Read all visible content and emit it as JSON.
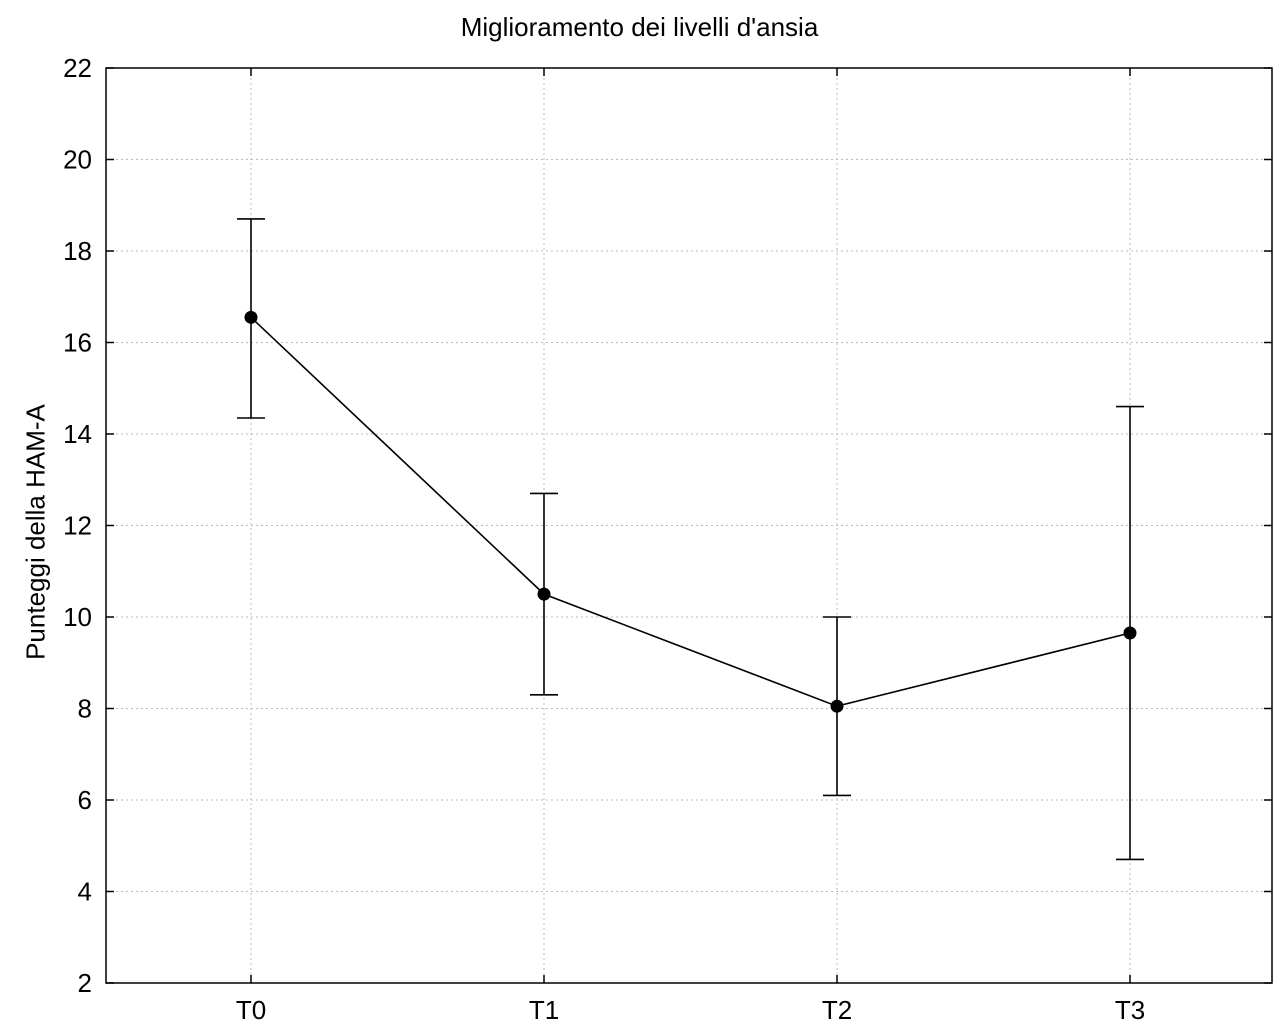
{
  "chart_data": {
    "type": "line",
    "title": "Miglioramento dei livelli d'ansia",
    "xlabel": "",
    "ylabel": "Punteggi della HAM-A",
    "categories": [
      "T0",
      "T1",
      "T2",
      "T3"
    ],
    "series": [
      {
        "values": [
          16.55,
          10.5,
          8.05,
          9.65
        ],
        "error_low": [
          14.35,
          8.3,
          6.1,
          4.7
        ],
        "error_high": [
          18.7,
          12.7,
          10.0,
          14.6
        ]
      }
    ],
    "ylim": [
      2,
      22
    ],
    "yticks": [
      2,
      4,
      6,
      8,
      10,
      12,
      14,
      16,
      18,
      20,
      22
    ],
    "grid": true,
    "line_color": "#000000",
    "marker_color": "#000000"
  }
}
